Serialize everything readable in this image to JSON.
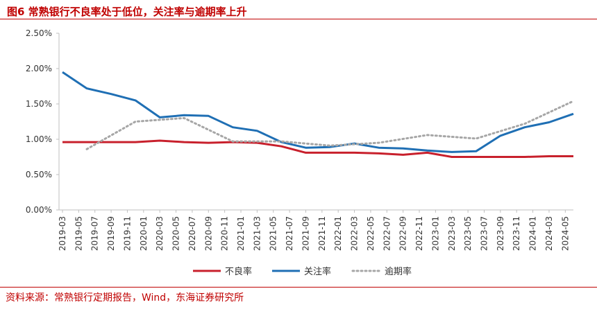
{
  "header": {
    "title": "图6 常熟银行不良率处于低位，关注率与逾期率上升"
  },
  "footer": {
    "source": "资料来源：常熟银行定期报告，Wind，东海证券研究所"
  },
  "colors": {
    "npl": "#c8202c",
    "attention": "#1f6fb4",
    "overdue": "#a6a6a6",
    "accent": "#c00000"
  },
  "chart_data": {
    "type": "line",
    "categories": [
      "2019-03",
      "2019-05",
      "2019-07",
      "2019-09",
      "2019-11",
      "2020-01",
      "2020-03",
      "2020-05",
      "2020-07",
      "2020-09",
      "2020-11",
      "2021-01",
      "2021-03",
      "2021-05",
      "2021-07",
      "2021-09",
      "2021-11",
      "2022-01",
      "2022-03",
      "2022-05",
      "2022-07",
      "2022-09",
      "2022-11",
      "2023-01",
      "2023-03",
      "2023-05",
      "2023-07",
      "2023-09",
      "2023-11",
      "2024-01",
      "2024-03",
      "2024-05"
    ],
    "series": [
      {
        "name": "不良率",
        "style": "solid",
        "x": [
          "2019-03",
          "2019-06",
          "2019-09",
          "2019-12",
          "2020-03",
          "2020-06",
          "2020-09",
          "2020-12",
          "2021-03",
          "2021-06",
          "2021-09",
          "2021-12",
          "2022-03",
          "2022-06",
          "2022-09",
          "2022-12",
          "2023-03",
          "2023-06",
          "2023-09",
          "2023-12",
          "2024-03",
          "2024-06"
        ],
        "values": [
          0.96,
          0.96,
          0.96,
          0.96,
          0.98,
          0.96,
          0.95,
          0.96,
          0.95,
          0.9,
          0.81,
          0.81,
          0.81,
          0.8,
          0.78,
          0.81,
          0.75,
          0.75,
          0.75,
          0.75,
          0.76,
          0.76
        ]
      },
      {
        "name": "关注率",
        "style": "solid",
        "x": [
          "2019-03",
          "2019-06",
          "2019-09",
          "2019-12",
          "2020-03",
          "2020-06",
          "2020-09",
          "2020-12",
          "2021-03",
          "2021-06",
          "2021-09",
          "2021-12",
          "2022-03",
          "2022-06",
          "2022-09",
          "2022-12",
          "2023-03",
          "2023-06",
          "2023-09",
          "2023-12",
          "2024-03",
          "2024-06"
        ],
        "values": [
          1.95,
          1.72,
          1.64,
          1.55,
          1.31,
          1.34,
          1.33,
          1.17,
          1.12,
          0.96,
          0.88,
          0.89,
          0.94,
          0.88,
          0.87,
          0.84,
          0.82,
          0.83,
          1.05,
          1.17,
          1.24,
          1.36
        ]
      },
      {
        "name": "逾期率",
        "style": "dotted",
        "x": [
          "2019-06",
          "2019-12",
          "2020-06",
          "2020-12",
          "2021-06",
          "2021-12",
          "2022-06",
          "2022-12",
          "2023-06",
          "2023-12",
          "2024-06"
        ],
        "values": [
          0.86,
          1.25,
          1.3,
          0.97,
          0.97,
          0.91,
          0.95,
          1.06,
          1.01,
          1.22,
          1.54
        ]
      }
    ],
    "yTicks": [
      "0.00%",
      "0.50%",
      "1.00%",
      "1.50%",
      "2.00%",
      "2.50%"
    ],
    "ylim": [
      0,
      2.5
    ],
    "legend": "bottom",
    "grid": false
  }
}
